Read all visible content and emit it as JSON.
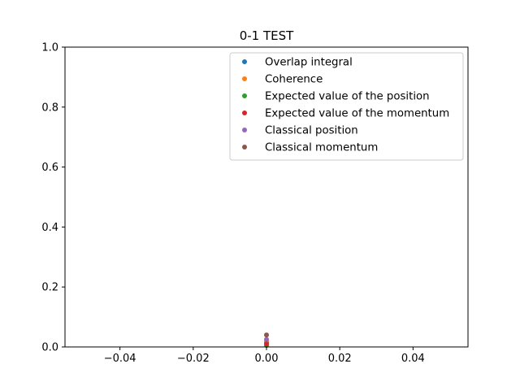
{
  "chart_data": {
    "type": "scatter",
    "title": "0-1 TEST",
    "xlabel": "",
    "ylabel": "",
    "xlim": [
      -0.055,
      0.055
    ],
    "ylim": [
      0,
      1.0
    ],
    "xticks": [
      -0.04,
      -0.02,
      0.0,
      0.02,
      0.04
    ],
    "xtick_labels": [
      "−0.04",
      "−0.02",
      "0.00",
      "0.02",
      "0.04"
    ],
    "yticks": [
      0.0,
      0.2,
      0.4,
      0.6,
      0.8,
      1.0
    ],
    "ytick_labels": [
      "0.0",
      "0.2",
      "0.4",
      "0.6",
      "0.8",
      "1.0"
    ],
    "grid": false,
    "legend_position": "top-right",
    "series": [
      {
        "name": "Overlap integral",
        "color": "#1f77b4",
        "x": [
          0.0
        ],
        "y": [
          0.015
        ]
      },
      {
        "name": "Coherence",
        "color": "#ff7f0e",
        "x": [
          0.0
        ],
        "y": [
          0.02
        ]
      },
      {
        "name": "Expected value of the position",
        "color": "#2ca02c",
        "x": [
          0.0
        ],
        "y": [
          0.005
        ]
      },
      {
        "name": "Expected value of the momentum",
        "color": "#d62728",
        "x": [
          0.0
        ],
        "y": [
          0.01
        ]
      },
      {
        "name": "Classical position",
        "color": "#9467bd",
        "x": [
          0.0
        ],
        "y": [
          0.025
        ]
      },
      {
        "name": "Classical momentum",
        "color": "#8c564b",
        "x": [
          0.0
        ],
        "y": [
          0.04
        ]
      }
    ]
  }
}
